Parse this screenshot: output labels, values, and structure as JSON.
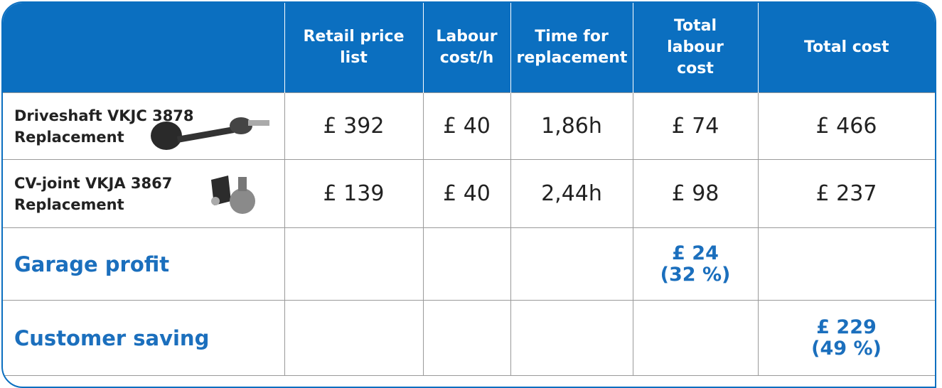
{
  "table": {
    "columns": [
      "Retail price list",
      "Labour cost/h",
      "Time for replacement",
      "Total labour cost",
      "Total cost"
    ],
    "rows": [
      {
        "label": [
          "Driveshaft  VKJC 3878",
          "Replacement"
        ],
        "cells": [
          "£ 392",
          "£ 40",
          "1,86h",
          "£ 74",
          "£ 466"
        ]
      },
      {
        "label": [
          "CV-joint  VKJA 3867",
          "Replacement"
        ],
        "cells": [
          "£ 139",
          "£ 40",
          "2,44h",
          "£ 98",
          "£ 237"
        ]
      },
      {
        "label": [
          "Garage profit"
        ],
        "cells": [
          null,
          null,
          null,
          [
            "£ 24",
            "(32 %)"
          ],
          null
        ]
      },
      {
        "label": [
          "Customer saving"
        ],
        "cells": [
          null,
          null,
          null,
          null,
          [
            "£ 229",
            "(49 %)"
          ]
        ]
      }
    ]
  }
}
